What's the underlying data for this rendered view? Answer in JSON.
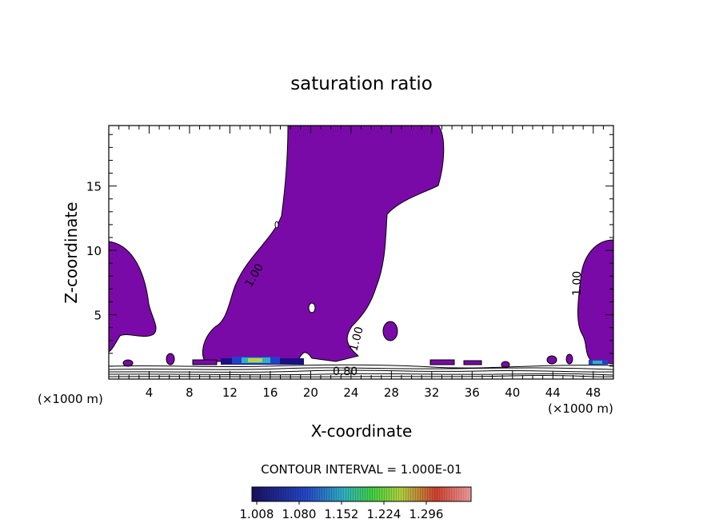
{
  "chart_data": {
    "type": "contour",
    "title": "saturation ratio",
    "xlabel": "X-coordinate",
    "ylabel": "Z-coordinate",
    "x_unit": "(×1000 m)",
    "x_ticks": [
      4,
      8,
      12,
      16,
      20,
      24,
      28,
      32,
      36,
      40,
      44,
      48
    ],
    "y_ticks": [
      5,
      10,
      15
    ],
    "xlim": [
      0,
      50
    ],
    "ylim": [
      0,
      19.7
    ],
    "contour_interval_text": "CONTOUR INTERVAL = 1.000E-01",
    "contour_labels": [
      "1.00",
      "1.00",
      "1.00",
      "0.80"
    ],
    "colorbar": {
      "tick_labels": [
        "1.008",
        "1.080",
        "1.152",
        "1.224",
        "1.296"
      ],
      "colors": [
        "#1a0f60",
        "#2040c0",
        "#20b0a0",
        "#40d040",
        "#c0d040",
        "#d04040",
        "#e08080"
      ]
    },
    "fill_color": "#7a0aa8"
  }
}
